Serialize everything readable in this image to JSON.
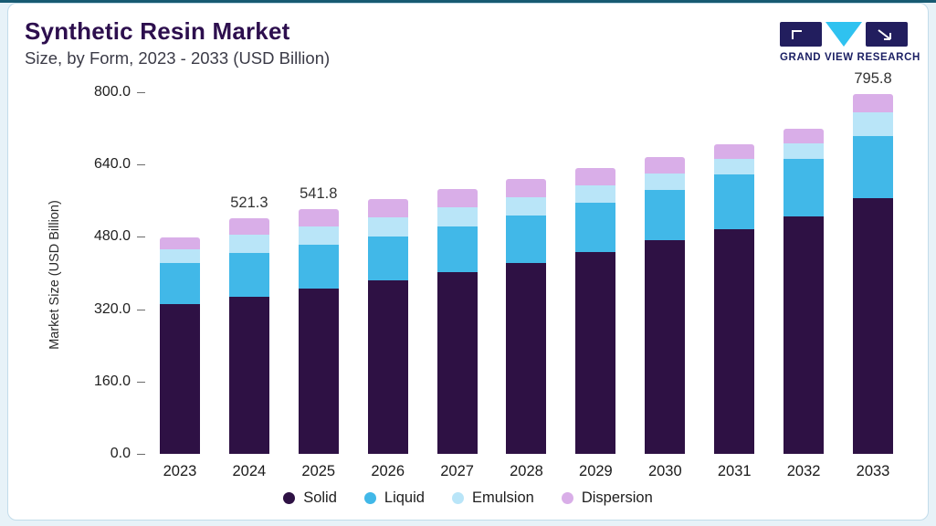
{
  "page": {
    "title": "Synthetic Resin Market",
    "subtitle": "Size, by Form, 2023 - 2033 (USD Billion)"
  },
  "logo": {
    "text": "GRAND VIEW RESEARCH",
    "navy": "#221e5e",
    "cyan": "#2fc2f0"
  },
  "chart_data": {
    "type": "bar",
    "stacked": true,
    "title": "Synthetic Resin Market",
    "subtitle": "Size, by Form, 2023 - 2033 (USD Billion)",
    "xlabel": "",
    "ylabel": "Market Size (USD Billion)",
    "ylim": [
      0,
      800
    ],
    "grid": false,
    "legend_position": "bottom",
    "yticks": [
      0,
      160,
      320,
      480,
      640,
      800
    ],
    "ytick_labels": [
      "0.0",
      "160.0",
      "320.0",
      "480.0",
      "640.0",
      "800.0"
    ],
    "categories": [
      "2023",
      "2024",
      "2025",
      "2026",
      "2027",
      "2028",
      "2029",
      "2030",
      "2031",
      "2032",
      "2033"
    ],
    "series": [
      {
        "name": "Solid",
        "color": "#2e1144",
        "values": [
          331,
          347,
          366,
          383,
          403,
          423,
          447,
          472,
          497,
          525,
          565
        ]
      },
      {
        "name": "Liquid",
        "color": "#41b8e8",
        "values": [
          92,
          98,
          96,
          98,
          100,
          104,
          108,
          112,
          122,
          127,
          138
        ]
      },
      {
        "name": "Emulsion",
        "color": "#b9e5f8",
        "values": [
          29,
          40,
          42,
          42,
          42,
          41,
          39,
          37,
          34,
          35,
          52
        ]
      },
      {
        "name": "Dispersion",
        "color": "#d9aee8",
        "values": [
          26,
          36.3,
          37.8,
          40,
          41,
          40,
          38,
          35,
          31,
          33,
          40.8
        ]
      }
    ],
    "totals": [
      478,
      521.3,
      541.8,
      563,
      586,
      608,
      632,
      656,
      684,
      720,
      795.8
    ],
    "value_labels": {
      "2024": "521.3",
      "2025": "541.8",
      "2033": "795.8"
    }
  }
}
